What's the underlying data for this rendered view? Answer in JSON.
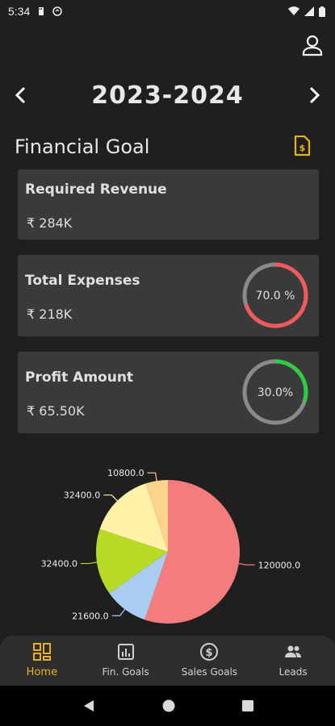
{
  "status": {
    "time": "5:34"
  },
  "header": {
    "year": "2023-2024"
  },
  "section": {
    "title": "Financial Goal"
  },
  "cards": [
    {
      "label": "Required Revenue",
      "value": "₹ 284K"
    },
    {
      "label": "Total Expenses",
      "value": "₹ 218K",
      "percent_text": "70.0 %",
      "percent": 70.0,
      "ring_color": "#f05a5a"
    },
    {
      "label": "Profit Amount",
      "value": "₹ 65.50K",
      "percent_text": "30.0%",
      "percent": 30.0,
      "ring_color": "#2ecc40"
    }
  ],
  "chart_data": {
    "type": "pie",
    "slices": [
      {
        "label": "120000.0",
        "value": 120000.0,
        "color": "#f47c7c"
      },
      {
        "label": "21600.0",
        "value": 21600.0,
        "color": "#a8cdf0"
      },
      {
        "label": "32400.0",
        "value": 32400.0,
        "color": "#b8dc26"
      },
      {
        "label": "32400.0",
        "value": 32400.0,
        "color": "#fff1a8"
      },
      {
        "label": "10800.0",
        "value": 10800.0,
        "color": "#fcd38a"
      }
    ]
  },
  "bottom_nav": {
    "items": [
      {
        "label": "Home",
        "icon": "dashboard-icon",
        "active": true
      },
      {
        "label": "Fin. Goals",
        "icon": "bar-chart-icon",
        "active": false
      },
      {
        "label": "Sales Goals",
        "icon": "dollar-circle-icon",
        "active": false
      },
      {
        "label": "Leads",
        "icon": "people-icon",
        "active": false
      }
    ]
  },
  "colors": {
    "accent": "#e6b21f",
    "card_bg": "#3a3a3a",
    "background": "#1f1f1f"
  }
}
